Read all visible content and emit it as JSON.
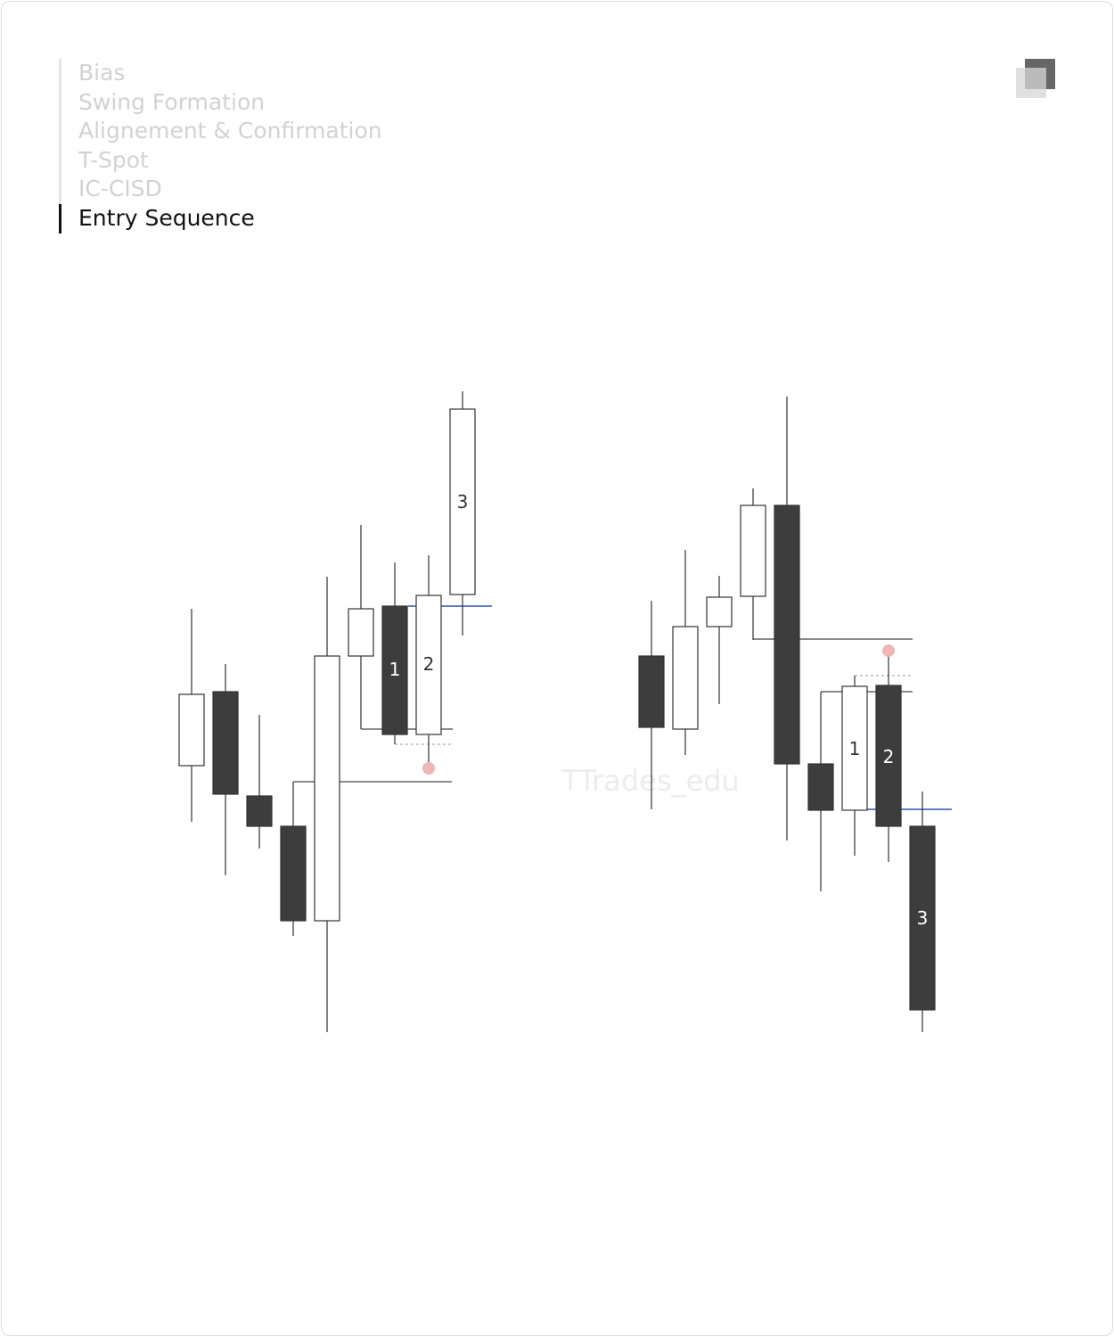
{
  "nav": {
    "items": [
      "Bias",
      "Swing Formation",
      "Alignement & Confirmation",
      "T-Spot",
      "IC-CISD",
      "Entry Sequence"
    ],
    "active": 5
  },
  "diagram": {
    "left_labels": [
      "1",
      "2",
      "3"
    ],
    "right_labels": [
      "1",
      "2",
      "3"
    ],
    "watermark": "TTrades_edu"
  }
}
